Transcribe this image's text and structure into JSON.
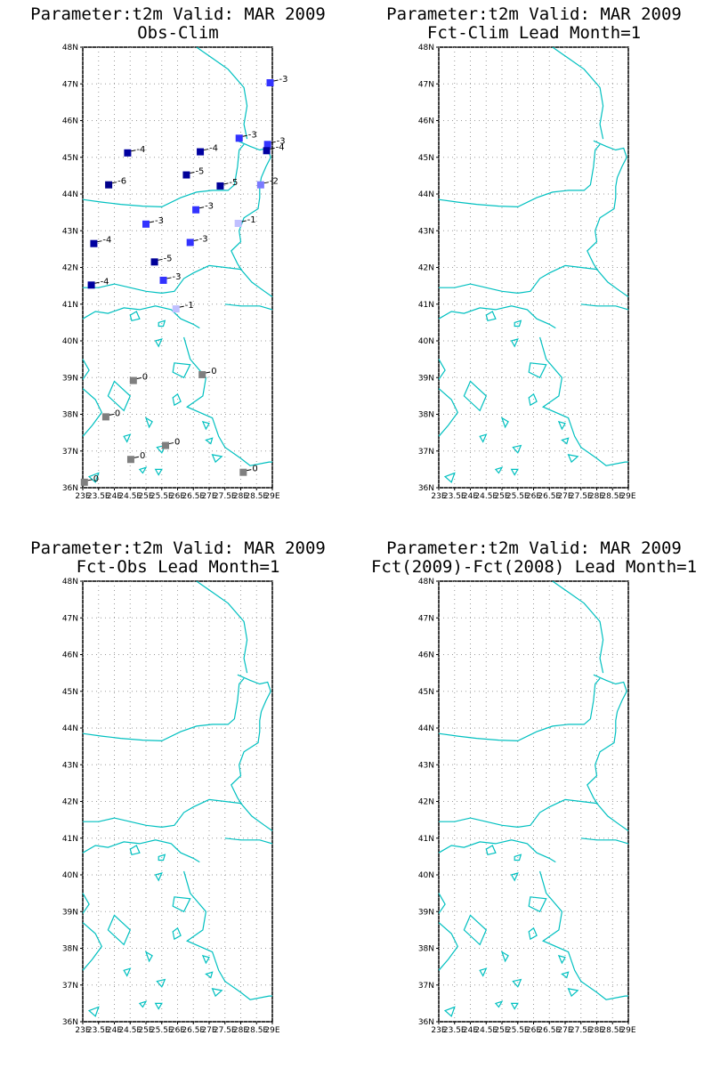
{
  "panels": [
    {
      "id": "p1",
      "line1": "Parameter:t2m Valid: MAR 2009",
      "line2": "Obs-Clim",
      "has_stations": true
    },
    {
      "id": "p2",
      "line1": "Parameter:t2m Valid: MAR 2009",
      "line2": "Fct-Clim Lead Month=1",
      "has_stations": false
    },
    {
      "id": "p3",
      "line1": "Parameter:t2m Valid: MAR 2009",
      "line2": "Fct-Obs Lead Month=1",
      "has_stations": false
    },
    {
      "id": "p4",
      "line1": "Parameter:t2m Valid: MAR 2009",
      "line2": "Fct(2009)-Fct(2008) Lead Month=1",
      "has_stations": false
    }
  ],
  "map_extent": {
    "lon": [
      23,
      29
    ],
    "lat": [
      36,
      48
    ]
  },
  "lat_ticks": [
    "36N",
    "37N",
    "38N",
    "39N",
    "40N",
    "41N",
    "42N",
    "43N",
    "44N",
    "45N",
    "46N",
    "47N",
    "48N"
  ],
  "lon_ticks": [
    "23E",
    "23.5E",
    "24E",
    "24.5E",
    "25E",
    "25.5E",
    "26E",
    "26.5E",
    "27E",
    "27.5E",
    "28E",
    "28.5E",
    "29E"
  ],
  "lon_tick_values": [
    23,
    23.5,
    24,
    24.5,
    25,
    25.5,
    26,
    26.5,
    27,
    27.5,
    28,
    28.5,
    29
  ],
  "lat_tick_values": [
    36,
    37,
    38,
    39,
    40,
    41,
    42,
    43,
    44,
    45,
    46,
    47,
    48
  ],
  "colors": {
    "coast": "#00c0c0",
    "anom_-6": "#00008b",
    "anom_-5": "#000099",
    "anom_-4": "#0000a0",
    "anom_-3": "#3333ff",
    "anom_-2": "#7a7aff",
    "anom_-1": "#c0c0ff",
    "anom_0": "#7f7f7f"
  },
  "stations": [
    {
      "lon": 28.93,
      "lat": 47.03,
      "label": "-3"
    },
    {
      "lon": 27.95,
      "lat": 45.52,
      "label": "-3"
    },
    {
      "lon": 28.85,
      "lat": 45.35,
      "label": "-3"
    },
    {
      "lon": 28.82,
      "lat": 45.18,
      "label": "-4"
    },
    {
      "lon": 24.42,
      "lat": 45.12,
      "label": "-4"
    },
    {
      "lon": 26.72,
      "lat": 45.15,
      "label": "-4"
    },
    {
      "lon": 26.28,
      "lat": 44.52,
      "label": "-5"
    },
    {
      "lon": 23.82,
      "lat": 44.25,
      "label": "-6"
    },
    {
      "lon": 27.35,
      "lat": 44.22,
      "label": "-5"
    },
    {
      "lon": 28.63,
      "lat": 44.25,
      "label": "-2"
    },
    {
      "lon": 26.58,
      "lat": 43.57,
      "label": "-3"
    },
    {
      "lon": 25.0,
      "lat": 43.18,
      "label": "-3"
    },
    {
      "lon": 27.92,
      "lat": 43.2,
      "label": "-1"
    },
    {
      "lon": 23.35,
      "lat": 42.65,
      "label": "-4"
    },
    {
      "lon": 26.4,
      "lat": 42.68,
      "label": "-3"
    },
    {
      "lon": 25.27,
      "lat": 42.15,
      "label": "-5"
    },
    {
      "lon": 25.55,
      "lat": 41.65,
      "label": "-3"
    },
    {
      "lon": 23.27,
      "lat": 41.52,
      "label": "-4"
    },
    {
      "lon": 25.95,
      "lat": 40.87,
      "label": "-1"
    },
    {
      "lon": 24.6,
      "lat": 38.92,
      "label": "0"
    },
    {
      "lon": 26.78,
      "lat": 39.08,
      "label": "0"
    },
    {
      "lon": 23.73,
      "lat": 37.93,
      "label": "0"
    },
    {
      "lon": 25.62,
      "lat": 37.15,
      "label": "0"
    },
    {
      "lon": 24.52,
      "lat": 36.77,
      "label": "0"
    },
    {
      "lon": 28.08,
      "lat": 36.42,
      "label": "0"
    },
    {
      "lon": 23.05,
      "lat": 36.15,
      "label": "0"
    }
  ]
}
